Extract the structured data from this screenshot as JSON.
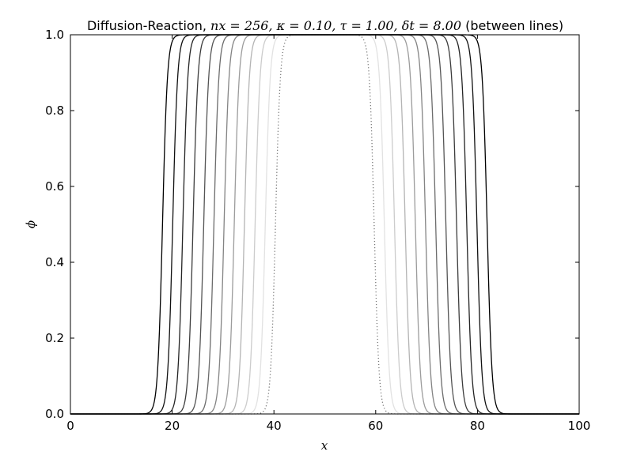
{
  "chart_data": {
    "type": "line",
    "title": {
      "prefix": "Diffusion-Reaction, ",
      "math1": "nx = 256, κ = 0.10, τ = 1.00, δt = 8.00",
      "suffix": " (between lines)"
    },
    "xlabel": "x",
    "ylabel": "ϕ",
    "xlim": [
      0,
      100
    ],
    "ylim": [
      0,
      1.0
    ],
    "x_ticks": [
      "0",
      "20",
      "40",
      "60",
      "80",
      "100"
    ],
    "y_ticks": [
      "0.0",
      "0.2",
      "0.4",
      "0.6",
      "0.8",
      "1.0"
    ],
    "grid": false,
    "profile_width": 0.95,
    "series": [
      {
        "left_front": 40.3,
        "right_front": 59.7,
        "style": "dotted",
        "color": "#777777"
      },
      {
        "left_front": 38.3,
        "right_front": 61.7,
        "style": "solid",
        "color": "#e2e2e2"
      },
      {
        "left_front": 36.3,
        "right_front": 63.7,
        "style": "solid",
        "color": "#cccccc"
      },
      {
        "left_front": 34.2,
        "right_front": 65.8,
        "style": "solid",
        "color": "#b4b4b4"
      },
      {
        "left_front": 32.2,
        "right_front": 67.8,
        "style": "solid",
        "color": "#9c9c9c"
      },
      {
        "left_front": 30.2,
        "right_front": 69.8,
        "style": "solid",
        "color": "#848484"
      },
      {
        "left_front": 28.2,
        "right_front": 71.8,
        "style": "solid",
        "color": "#6c6c6c"
      },
      {
        "left_front": 26.2,
        "right_front": 73.8,
        "style": "solid",
        "color": "#545454"
      },
      {
        "left_front": 24.1,
        "right_front": 75.9,
        "style": "solid",
        "color": "#3c3c3c"
      },
      {
        "left_front": 22.1,
        "right_front": 77.9,
        "style": "solid",
        "color": "#242424"
      },
      {
        "left_front": 20.1,
        "right_front": 79.9,
        "style": "solid",
        "color": "#111111"
      },
      {
        "left_front": 18.1,
        "right_front": 81.9,
        "style": "solid",
        "color": "#000000"
      }
    ]
  }
}
